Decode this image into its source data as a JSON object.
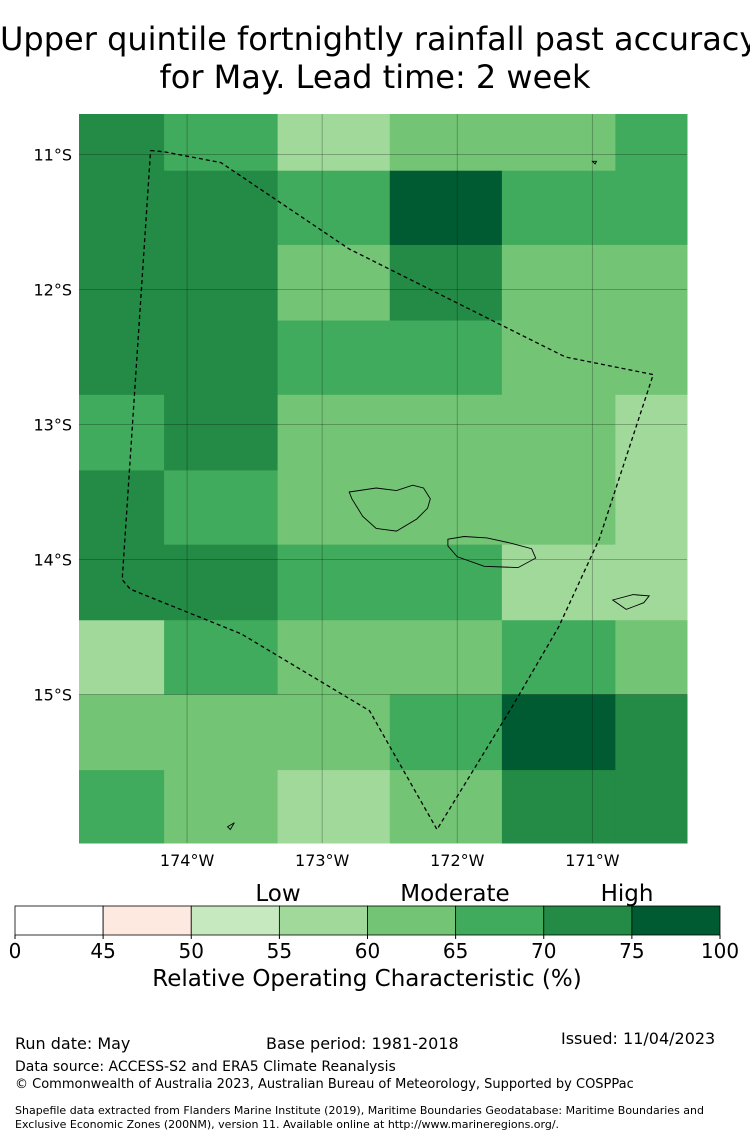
{
  "title": {
    "line1": "Upper quintile fortnightly rainfall past accuracy",
    "line2": "for May. Lead time: 2 week"
  },
  "map": {
    "lat_ticks": [
      "11°S",
      "12°S",
      "13°S",
      "14°S",
      "15°S"
    ],
    "lon_ticks": [
      "174°W",
      "173°W",
      "172°W",
      "171°W"
    ],
    "lon_columns": [
      -174.8,
      -174.17,
      -173.33,
      -172.5,
      -171.67,
      -170.83,
      -170.3
    ],
    "lat_rows": [
      -10.7,
      -11.12,
      -11.67,
      -12.23,
      -12.78,
      -13.34,
      -13.89,
      -14.45,
      -15.0,
      -15.56,
      -16.1
    ],
    "grid_levels": [
      [
        7,
        6,
        4,
        5,
        5,
        6
      ],
      [
        7,
        7,
        6,
        8,
        6,
        6
      ],
      [
        7,
        7,
        5,
        7,
        5,
        5
      ],
      [
        7,
        7,
        6,
        6,
        5,
        5
      ],
      [
        6,
        7,
        5,
        5,
        5,
        4
      ],
      [
        7,
        6,
        5,
        5,
        5,
        4
      ],
      [
        7,
        7,
        6,
        6,
        4,
        4
      ],
      [
        4,
        6,
        5,
        5,
        6,
        5
      ],
      [
        5,
        5,
        5,
        6,
        8,
        7
      ],
      [
        6,
        5,
        4,
        5,
        7,
        7
      ]
    ],
    "eez_boundary": [
      [
        -174.27,
        -10.97
      ],
      [
        -174.17,
        -10.98
      ],
      [
        -173.75,
        -11.06
      ],
      [
        -172.8,
        -11.7
      ],
      [
        -171.7,
        -12.25
      ],
      [
        -171.2,
        -12.5
      ],
      [
        -170.55,
        -12.63
      ],
      [
        -170.95,
        -13.85
      ],
      [
        -171.25,
        -14.5
      ],
      [
        -171.6,
        -15.1
      ],
      [
        -172.15,
        -16.0
      ],
      [
        -172.65,
        -15.12
      ],
      [
        -173.6,
        -14.55
      ],
      [
        -174.42,
        -14.22
      ],
      [
        -174.48,
        -14.15
      ],
      [
        -174.27,
        -10.97
      ]
    ],
    "islands": [
      [
        [
          -172.8,
          -13.5
        ],
        [
          -172.6,
          -13.47
        ],
        [
          -172.45,
          -13.49
        ],
        [
          -172.33,
          -13.45
        ],
        [
          -172.25,
          -13.47
        ],
        [
          -172.2,
          -13.55
        ],
        [
          -172.22,
          -13.62
        ],
        [
          -172.3,
          -13.7
        ],
        [
          -172.45,
          -13.79
        ],
        [
          -172.6,
          -13.77
        ],
        [
          -172.7,
          -13.68
        ],
        [
          -172.78,
          -13.55
        ],
        [
          -172.8,
          -13.5
        ]
      ],
      [
        [
          -172.07,
          -13.85
        ],
        [
          -171.95,
          -13.83
        ],
        [
          -171.78,
          -13.84
        ],
        [
          -171.6,
          -13.88
        ],
        [
          -171.45,
          -13.92
        ],
        [
          -171.42,
          -13.99
        ],
        [
          -171.55,
          -14.06
        ],
        [
          -171.8,
          -14.05
        ],
        [
          -172.0,
          -13.98
        ],
        [
          -172.07,
          -13.9
        ],
        [
          -172.07,
          -13.85
        ]
      ],
      [
        [
          -170.85,
          -14.3
        ],
        [
          -170.7,
          -14.26
        ],
        [
          -170.58,
          -14.27
        ],
        [
          -170.62,
          -14.32
        ],
        [
          -170.75,
          -14.37
        ],
        [
          -170.85,
          -14.3
        ]
      ],
      [
        [
          -173.7,
          -15.98
        ],
        [
          -173.65,
          -15.95
        ],
        [
          -173.68,
          -16.0
        ],
        [
          -173.7,
          -15.98
        ]
      ],
      [
        [
          -171.0,
          -11.05
        ],
        [
          -170.97,
          -11.05
        ],
        [
          -170.98,
          -11.07
        ],
        [
          -171.0,
          -11.05
        ]
      ]
    ]
  },
  "colorbar": {
    "ticks": [
      "0",
      "45",
      "50",
      "55",
      "60",
      "65",
      "70",
      "75",
      "100"
    ],
    "colors": [
      "#ffffff",
      "#fee9e0",
      "#c7e9c0",
      "#a1d99b",
      "#74c476",
      "#41ab5d",
      "#238b45",
      "#005a32"
    ],
    "category_labels": [
      "Low",
      "Moderate",
      "High"
    ],
    "title": "Relative Operating Characteristic (%)"
  },
  "footer": {
    "run_date": "Run date: May",
    "base_period": "Base period: 1981-2018",
    "issued": "Issued: 11/04/2023",
    "data_source": "Data source: ACCESS-S2 and ERA5 Climate Reanalysis",
    "copyright": "© Commonwealth of Australia 2023, Australian Bureau of Meteorology, Supported by COSPPac",
    "shapefile": "Shapefile data extracted from Flanders Marine Institute (2019), Maritime Boundaries Geodatabase: Maritime Boundaries and Exclusive Economic Zones (200NM), version 11. Available online at http://www.marineregions.org/."
  }
}
